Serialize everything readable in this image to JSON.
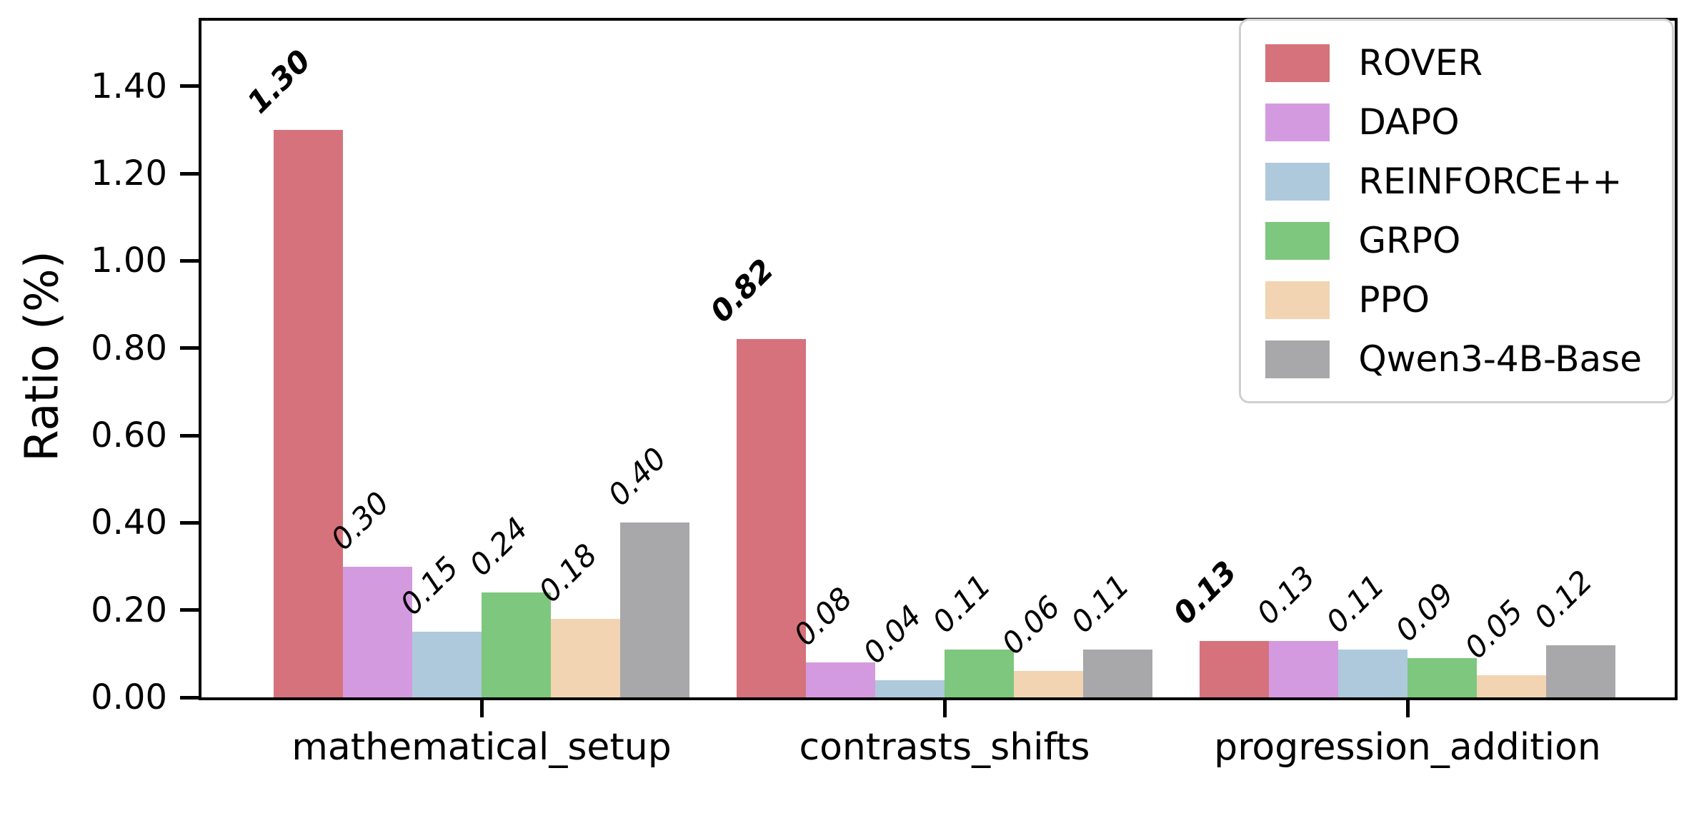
{
  "chart_data": {
    "type": "bar",
    "title": "",
    "xlabel": "",
    "ylabel": "Ratio (%)",
    "categories": [
      "mathematical_setup",
      "contrasts_shifts",
      "progression_addition"
    ],
    "series": [
      {
        "name": "ROVER",
        "color": "#d6727b",
        "values": [
          1.3,
          0.82,
          0.13
        ],
        "labels": [
          "1.30",
          "0.82",
          "0.13"
        ],
        "bold_labels": true
      },
      {
        "name": "DAPO",
        "color": "#d49ae0",
        "values": [
          0.3,
          0.08,
          0.13
        ],
        "labels": [
          "0.30",
          "0.08",
          "0.13"
        ],
        "bold_labels": false
      },
      {
        "name": "REINFORCE++",
        "color": "#aec9db",
        "values": [
          0.15,
          0.04,
          0.11
        ],
        "labels": [
          "0.15",
          "0.04",
          "0.11"
        ],
        "bold_labels": false
      },
      {
        "name": "GRPO",
        "color": "#7ec77e",
        "values": [
          0.24,
          0.11,
          0.09
        ],
        "labels": [
          "0.24",
          "0.11",
          "0.09"
        ],
        "bold_labels": false
      },
      {
        "name": "PPO",
        "color": "#f2d4b2",
        "values": [
          0.18,
          0.06,
          0.05
        ],
        "labels": [
          "0.18",
          "0.06",
          "0.05"
        ],
        "bold_labels": false
      },
      {
        "name": "Qwen3-4B-Base",
        "color": "#a8a8aa",
        "values": [
          0.4,
          0.11,
          0.12
        ],
        "labels": [
          "0.40",
          "0.11",
          "0.12"
        ],
        "bold_labels": false
      }
    ],
    "yticks": {
      "values": [
        0.0,
        0.2,
        0.4,
        0.6,
        0.8,
        1.0,
        1.2,
        1.4
      ],
      "labels": [
        "0.00",
        "0.20",
        "0.40",
        "0.60",
        "0.80",
        "1.00",
        "1.20",
        "1.40"
      ]
    },
    "ylim": [
      0,
      1.55
    ],
    "value_label_rotation": 45,
    "legend_position": "upper right",
    "grid": false
  }
}
